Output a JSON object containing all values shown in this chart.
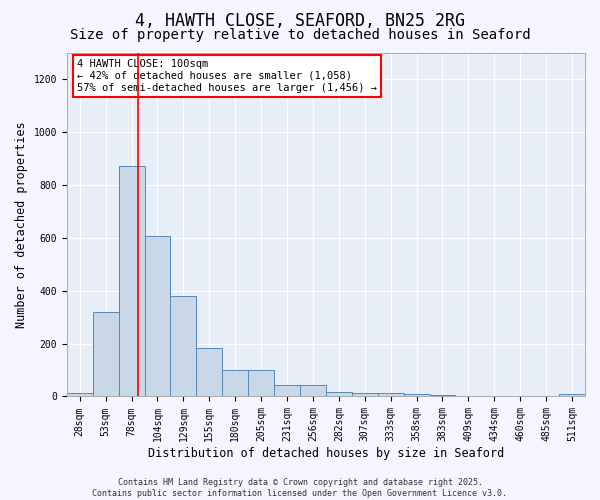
{
  "title": "4, HAWTH CLOSE, SEAFORD, BN25 2RG",
  "subtitle": "Size of property relative to detached houses in Seaford",
  "xlabel": "Distribution of detached houses by size in Seaford",
  "ylabel": "Number of detached properties",
  "bar_values": [
    12,
    320,
    870,
    605,
    380,
    185,
    100,
    100,
    45,
    45,
    18,
    15,
    15,
    10,
    5,
    2,
    2,
    1,
    1,
    8
  ],
  "categories": [
    "28sqm",
    "53sqm",
    "78sqm",
    "104sqm",
    "129sqm",
    "155sqm",
    "180sqm",
    "205sqm",
    "231sqm",
    "256sqm",
    "282sqm",
    "307sqm",
    "333sqm",
    "358sqm",
    "383sqm",
    "409sqm",
    "434sqm",
    "460sqm",
    "485sqm",
    "511sqm"
  ],
  "bar_color": "#c8d8e8",
  "bar_edge_color": "#5588bb",
  "vline_x": 2.75,
  "vline_color": "red",
  "annotation_line1": "4 HAWTH CLOSE: 100sqm",
  "annotation_line2": "← 42% of detached houses are smaller (1,058)",
  "annotation_line3": "57% of semi-detached houses are larger (1,456) →",
  "ylim": [
    0,
    1300
  ],
  "yticks": [
    0,
    200,
    400,
    600,
    800,
    1000,
    1200
  ],
  "background_color": "#e8eef8",
  "fig_background": "#f5f5ff",
  "footer_line1": "Contains HM Land Registry data © Crown copyright and database right 2025.",
  "footer_line2": "Contains public sector information licensed under the Open Government Licence v3.0.",
  "title_fontsize": 12,
  "subtitle_fontsize": 10,
  "xlabel_fontsize": 8.5,
  "ylabel_fontsize": 8.5,
  "tick_fontsize": 7,
  "annotation_fontsize": 7.5,
  "footer_fontsize": 6
}
